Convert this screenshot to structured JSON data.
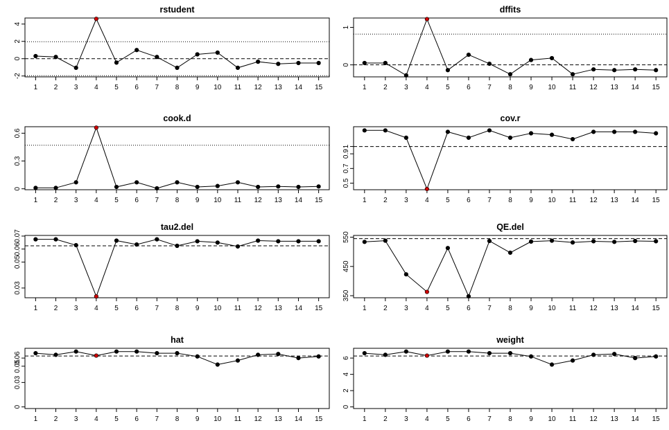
{
  "colors": {
    "point": "#000000",
    "highlight_point": "#cc0000",
    "line": "#000000",
    "background": "#ffffff"
  },
  "chart_data": [
    {
      "type": "line",
      "title": "rstudent",
      "x": [
        1,
        2,
        3,
        4,
        5,
        6,
        7,
        8,
        9,
        10,
        11,
        12,
        13,
        14,
        15
      ],
      "values": [
        0.3,
        0.2,
        -1.05,
        4.6,
        -0.45,
        1.0,
        0.2,
        -1.05,
        0.5,
        0.7,
        -1.05,
        -0.35,
        -0.6,
        -0.5,
        -0.5
      ],
      "highlight_index": 3,
      "ylim": [
        -2.1,
        4.7
      ],
      "yticks": [
        -2,
        0,
        2,
        4
      ],
      "reference_lines": [
        {
          "y": 0,
          "style": "dashed"
        },
        {
          "y": 1.96,
          "style": "dotted"
        },
        {
          "y": -1.96,
          "style": "dotted"
        }
      ]
    },
    {
      "type": "line",
      "title": "dffits",
      "x": [
        1,
        2,
        3,
        4,
        5,
        6,
        7,
        8,
        9,
        10,
        11,
        12,
        13,
        14,
        15
      ],
      "values": [
        0.05,
        0.05,
        -0.28,
        1.22,
        -0.14,
        0.27,
        0.03,
        -0.25,
        0.13,
        0.18,
        -0.25,
        -0.12,
        -0.14,
        -0.12,
        -0.14
      ],
      "highlight_index": 3,
      "ylim": [
        -0.32,
        1.25
      ],
      "yticks": [
        0.0,
        1.0
      ],
      "reference_lines": [
        {
          "y": 0,
          "style": "dashed"
        },
        {
          "y": 0.82,
          "style": "dotted"
        }
      ]
    },
    {
      "type": "line",
      "title": "cook.d",
      "x": [
        1,
        2,
        3,
        4,
        5,
        6,
        7,
        8,
        9,
        10,
        11,
        12,
        13,
        14,
        15
      ],
      "values": [
        0.01,
        0.01,
        0.07,
        0.66,
        0.02,
        0.07,
        0.005,
        0.07,
        0.02,
        0.03,
        0.07,
        0.02,
        0.025,
        0.02,
        0.025
      ],
      "highlight_index": 3,
      "ylim": [
        -0.01,
        0.67
      ],
      "yticks": [
        0.0,
        0.3,
        0.6
      ],
      "reference_lines": [
        {
          "y": 0.47,
          "style": "dotted"
        }
      ]
    },
    {
      "type": "line",
      "title": "cov.r",
      "x": [
        1,
        2,
        3,
        4,
        5,
        6,
        7,
        8,
        9,
        10,
        11,
        12,
        13,
        14,
        15
      ],
      "values": [
        1.22,
        1.22,
        1.12,
        0.42,
        1.2,
        1.12,
        1.22,
        1.12,
        1.18,
        1.16,
        1.1,
        1.2,
        1.2,
        1.2,
        1.18
      ],
      "highlight_index": 3,
      "ylim": [
        0.41,
        1.27
      ],
      "yticks": [
        0.5,
        0.7,
        0.9,
        1.0
      ],
      "reference_lines": [
        {
          "y": 1.0,
          "style": "dashed"
        }
      ]
    },
    {
      "type": "line",
      "title": "tau2.del",
      "x": [
        1,
        2,
        3,
        4,
        5,
        6,
        7,
        8,
        9,
        10,
        11,
        12,
        13,
        14,
        15
      ],
      "values": [
        0.0675,
        0.0675,
        0.063,
        0.0235,
        0.0665,
        0.0635,
        0.0675,
        0.0625,
        0.066,
        0.065,
        0.062,
        0.0665,
        0.066,
        0.066,
        0.066
      ],
      "highlight_index": 3,
      "ylim": [
        0.0225,
        0.0705
      ],
      "yticks": [
        0.03,
        0.05,
        0.06,
        0.07
      ],
      "reference_lines": [
        {
          "y": 0.0625,
          "style": "dashed"
        }
      ]
    },
    {
      "type": "line",
      "title": "QE.del",
      "x": [
        1,
        2,
        3,
        4,
        5,
        6,
        7,
        8,
        9,
        10,
        11,
        12,
        13,
        14,
        15
      ],
      "values": [
        534,
        538,
        423,
        363,
        513,
        348,
        537,
        497,
        535,
        538,
        532,
        536,
        534,
        537,
        536
      ],
      "highlight_index": 3,
      "ylim": [
        343,
        556
      ],
      "yticks": [
        350,
        450,
        550
      ],
      "reference_lines": [
        {
          "y": 545,
          "style": "dashed"
        }
      ]
    },
    {
      "type": "line",
      "title": "hat",
      "x": [
        1,
        2,
        3,
        4,
        5,
        6,
        7,
        8,
        9,
        10,
        11,
        12,
        13,
        14,
        15
      ],
      "values": [
        0.066,
        0.064,
        0.068,
        0.063,
        0.068,
        0.068,
        0.066,
        0.066,
        0.062,
        0.052,
        0.057,
        0.064,
        0.065,
        0.06,
        0.062
      ],
      "highlight_index": 3,
      "ylim": [
        -0.002,
        0.072
      ],
      "yticks": [
        0.0,
        0.03,
        0.05,
        0.06
      ],
      "reference_lines": [
        {
          "y": 0.0625,
          "style": "dashed"
        }
      ]
    },
    {
      "type": "line",
      "title": "weight",
      "x": [
        1,
        2,
        3,
        4,
        5,
        6,
        7,
        8,
        9,
        10,
        11,
        12,
        13,
        14,
        15
      ],
      "values": [
        6.6,
        6.4,
        6.8,
        6.3,
        6.8,
        6.8,
        6.6,
        6.6,
        6.2,
        5.2,
        5.7,
        6.4,
        6.5,
        6.0,
        6.2
      ],
      "highlight_index": 3,
      "ylim": [
        -0.2,
        7.2
      ],
      "yticks": [
        0,
        2,
        4,
        6
      ],
      "reference_lines": [
        {
          "y": 6.25,
          "style": "dashed"
        }
      ]
    }
  ]
}
